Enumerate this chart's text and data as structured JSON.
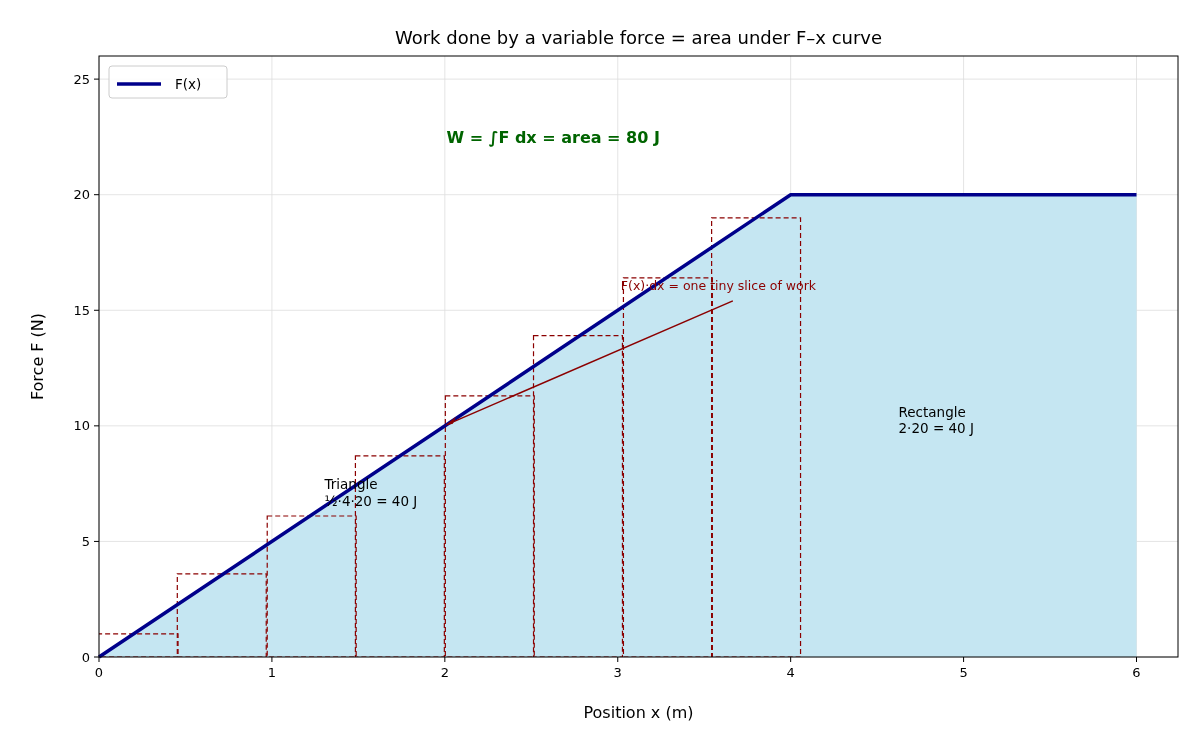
{
  "chart_data": {
    "type": "area",
    "title": "Work done by a variable force = area under F–x curve",
    "xlabel": "Position  x  (m)",
    "ylabel": "Force  F  (N)",
    "xlim": [
      0,
      6.24
    ],
    "ylim": [
      0,
      26
    ],
    "xticks": [
      0,
      1,
      2,
      3,
      4,
      5,
      6
    ],
    "yticks": [
      0,
      5,
      10,
      15,
      20,
      25
    ],
    "grid": true,
    "legend": "top left",
    "series": [
      {
        "name": "F(x)",
        "color": "#00008b",
        "colors": [
          "#c5e6f2",
          "#c5e6f2",
          "#c5e6f2"
        ],
        "x": [
          0,
          4,
          6
        ],
        "values": [
          0,
          20,
          20
        ]
      },
      {
        "type": "bar",
        "color": "#8b0000",
        "line_style": "dashed",
        "x": [
          0.2,
          0.71,
          1.23,
          1.74,
          2.26,
          2.77,
          3.29,
          3.8
        ],
        "values": [
          1.0,
          3.6,
          6.1,
          8.7,
          11.3,
          13.9,
          16.4,
          19.0
        ]
      }
    ],
    "annotations": [
      "W = ∫F dx = area = 80 J",
      {
        "text": "F(x)·dx = one tiny slice of work",
        "x": 2,
        "y": 10
      },
      "Triangle\n½·4·20 = 40 J",
      "Rectangle\n2·20 = 40 J"
    ]
  }
}
